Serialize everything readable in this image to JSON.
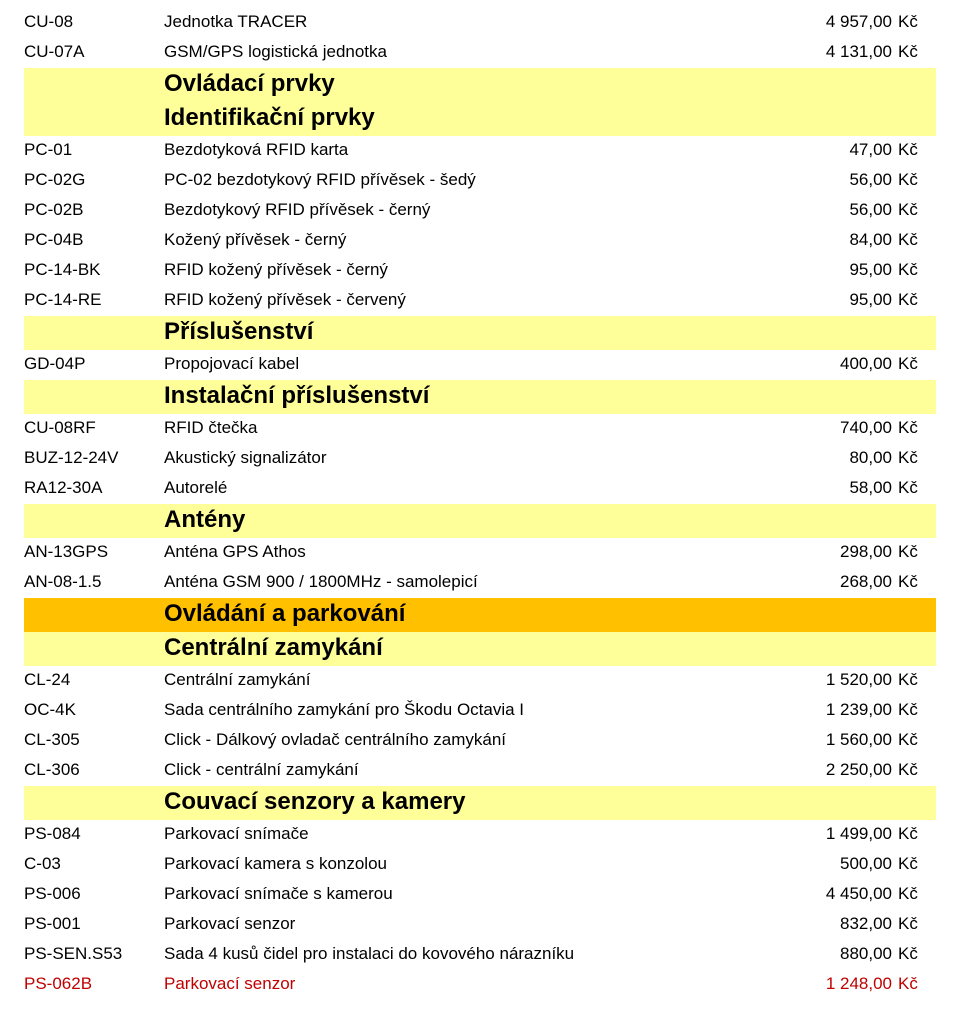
{
  "currency": "Kč",
  "colors": {
    "header_major_bg": "#ffc000",
    "header_sub_bg": "#ffff99",
    "text": "#000000",
    "red_text": "#c00000",
    "background": "#ffffff"
  },
  "rows": [
    {
      "type": "item",
      "code": "CU-08",
      "desc": "Jednotka TRACER",
      "price": "4 957,00"
    },
    {
      "type": "item",
      "code": "CU-07A",
      "desc": "GSM/GPS logistická jednotka",
      "price": "4 131,00"
    },
    {
      "type": "sub",
      "label": "Ovládací prvky"
    },
    {
      "type": "sub",
      "label": "Identifikační prvky"
    },
    {
      "type": "item",
      "code": "PC-01",
      "desc": "Bezdotyková RFID karta",
      "price": "47,00"
    },
    {
      "type": "item",
      "code": "PC-02G",
      "desc": "PC-02 bezdotykový RFID přívěsek - šedý",
      "price": "56,00"
    },
    {
      "type": "item",
      "code": "PC-02B",
      "desc": "Bezdotykový RFID přívěsek - černý",
      "price": "56,00"
    },
    {
      "type": "item",
      "code": "PC-04B",
      "desc": "Kožený přívěsek - černý",
      "price": "84,00"
    },
    {
      "type": "item",
      "code": "PC-14-BK",
      "desc": "RFID kožený přívěsek - černý",
      "price": "95,00"
    },
    {
      "type": "item",
      "code": "PC-14-RE",
      "desc": "RFID kožený přívěsek - červený",
      "price": "95,00"
    },
    {
      "type": "sub",
      "label": "Příslušenství"
    },
    {
      "type": "item",
      "code": "GD-04P",
      "desc": "Propojovací kabel",
      "price": "400,00"
    },
    {
      "type": "sub",
      "label": "Instalační příslušenství"
    },
    {
      "type": "item",
      "code": "CU-08RF",
      "desc": "RFID čtečka",
      "price": "740,00"
    },
    {
      "type": "item",
      "code": "BUZ-12-24V",
      "desc": "Akustický signalizátor",
      "price": "80,00"
    },
    {
      "type": "item",
      "code": "RA12-30A",
      "desc": "Autorelé",
      "price": "58,00"
    },
    {
      "type": "sub",
      "label": "Antény"
    },
    {
      "type": "item",
      "code": "AN-13GPS",
      "desc": "Anténa GPS Athos",
      "price": "298,00"
    },
    {
      "type": "item",
      "code": "AN-08-1.5",
      "desc": "Anténa GSM 900 / 1800MHz - samolepicí",
      "price": "268,00"
    },
    {
      "type": "major",
      "label": "Ovládání a parkování"
    },
    {
      "type": "sub",
      "label": "Centrální zamykání"
    },
    {
      "type": "item",
      "code": "CL-24",
      "desc": "Centrální zamykání",
      "price": "1 520,00"
    },
    {
      "type": "item",
      "code": "OC-4K",
      "desc": "Sada centrálního zamykání pro Škodu Octavia I",
      "price": "1 239,00"
    },
    {
      "type": "item",
      "code": "CL-305",
      "desc": "Click - Dálkový ovladač centrálního zamykání",
      "price": "1 560,00"
    },
    {
      "type": "item",
      "code": "CL-306",
      "desc": "Click - centrální zamykání",
      "price": "2 250,00"
    },
    {
      "type": "sub",
      "label": "Couvací senzory a kamery"
    },
    {
      "type": "item",
      "code": "PS-084",
      "desc": "Parkovací snímače",
      "price": "1 499,00"
    },
    {
      "type": "item",
      "code": "C-03",
      "desc": "Parkovací kamera s konzolou",
      "price": "500,00"
    },
    {
      "type": "item",
      "code": "PS-006",
      "desc": "Parkovací snímače s kamerou",
      "price": "4 450,00"
    },
    {
      "type": "item",
      "code": "PS-001",
      "desc": "Parkovací senzor",
      "price": "832,00"
    },
    {
      "type": "item",
      "code": "PS-SEN.S53",
      "desc": "Sada 4 kusů čidel pro instalaci do kovového nárazníku",
      "price": "880,00"
    },
    {
      "type": "item",
      "code": "PS-062B",
      "desc": "Parkovací senzor",
      "price": "1 248,00",
      "red": true
    }
  ]
}
